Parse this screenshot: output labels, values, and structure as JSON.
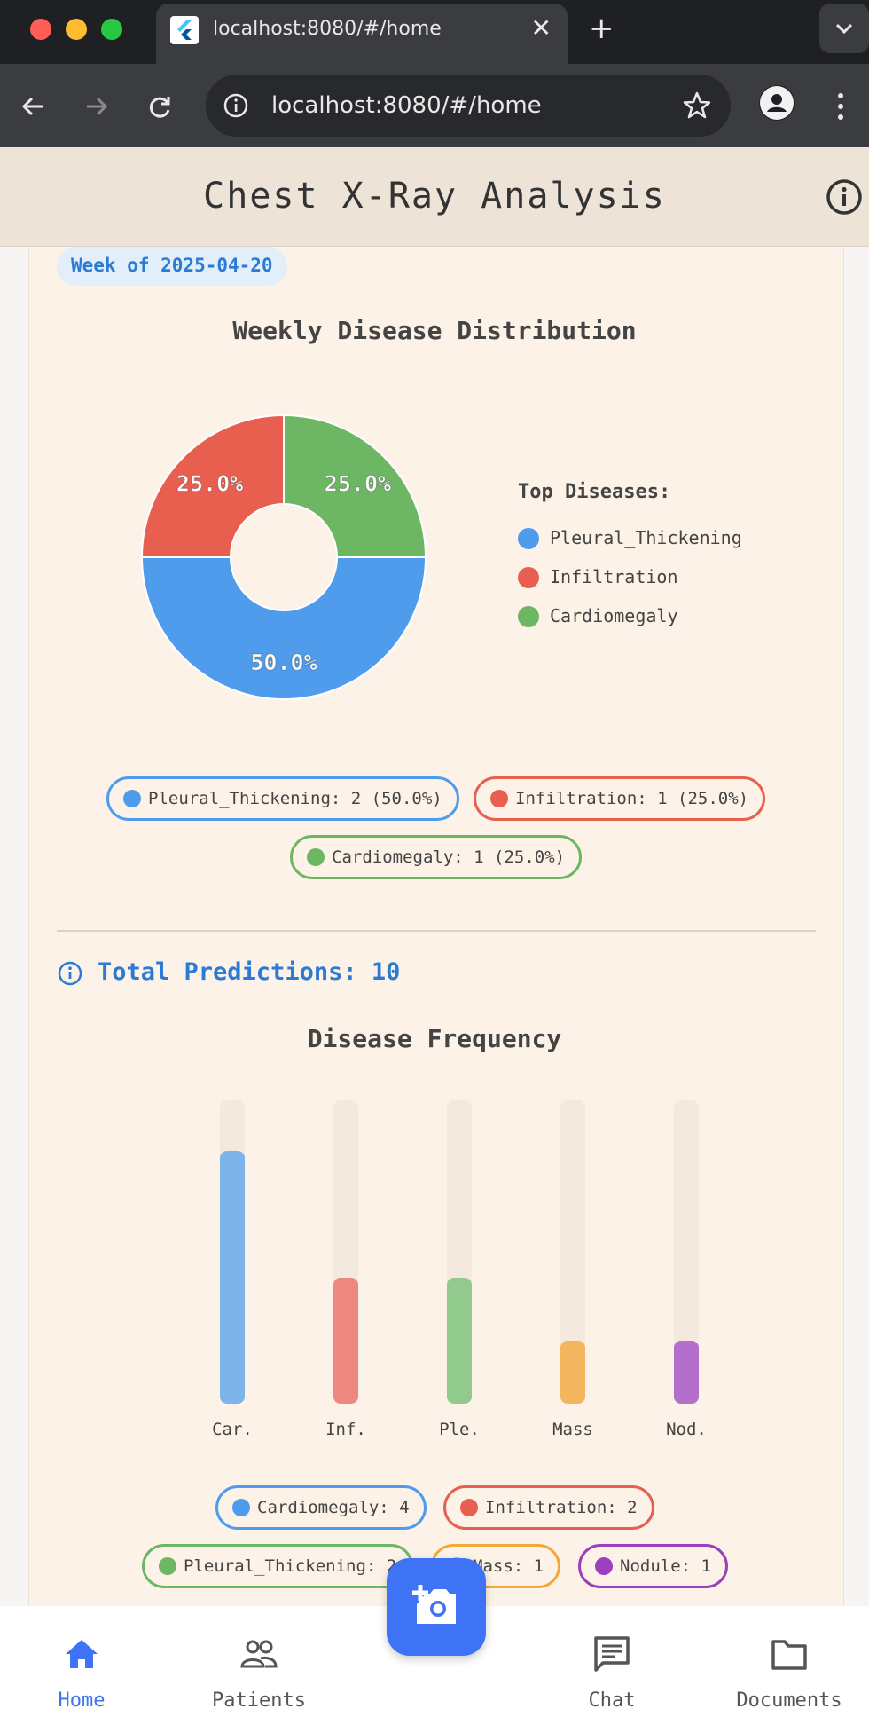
{
  "browser": {
    "tab_title": "localhost:8080/#/home",
    "url": "localhost:8080/#/home",
    "close_glyph": "✕",
    "new_tab_glyph": "+"
  },
  "app": {
    "title": "Chest X-Ray Analysis"
  },
  "weekly": {
    "week_label": "Week of 2025-04-20",
    "title": "Weekly Disease Distribution",
    "legend_title": "Top Diseases:",
    "legend": [
      {
        "label": "Pleural_Thickening",
        "color": "#4f9cec"
      },
      {
        "label": "Infiltration",
        "color": "#e85f50"
      },
      {
        "label": "Cardiomegaly",
        "color": "#6db664"
      }
    ],
    "slice_labels": [
      "50.0%",
      "25.0%",
      "25.0%"
    ],
    "chips": [
      {
        "label": "Pleural_Thickening: 2 (50.0%)",
        "color": "#4f9cec"
      },
      {
        "label": "Infiltration: 1 (25.0%)",
        "color": "#e85f50"
      },
      {
        "label": "Cardiomegaly: 1 (25.0%)",
        "color": "#6db664"
      }
    ]
  },
  "totals": {
    "label": "Total Predictions: 10"
  },
  "frequency": {
    "title": "Disease Frequency",
    "chips": [
      {
        "label": "Cardiomegaly: 4",
        "color": "#4f9cec"
      },
      {
        "label": "Infiltration: 2",
        "color": "#e85f50"
      },
      {
        "label": "Pleural_Thickening: 2",
        "color": "#6db664"
      },
      {
        "label": "Mass: 1",
        "color": "#f2a93b"
      },
      {
        "label": "Nodule: 1",
        "color": "#9c3fbd"
      }
    ]
  },
  "chart_data": [
    {
      "type": "pie",
      "title": "Weekly Disease Distribution",
      "categories": [
        "Pleural_Thickening",
        "Infiltration",
        "Cardiomegaly"
      ],
      "values": [
        2,
        1,
        1
      ],
      "percent_labels": [
        "50.0%",
        "25.0%",
        "25.0%"
      ],
      "colors": [
        "#4f9cec",
        "#e85f50",
        "#6db664"
      ],
      "donut": true,
      "legend_placement": "right"
    },
    {
      "type": "bar",
      "title": "Disease Frequency",
      "categories": [
        "Car.",
        "Inf.",
        "Ple.",
        "Mass",
        "Nod."
      ],
      "values": [
        4,
        2,
        2,
        1,
        1
      ],
      "ylim": [
        0,
        4.8
      ],
      "colors": [
        "#7db4ea",
        "#ec8880",
        "#92c98d",
        "#f3b65e",
        "#b36fcb"
      ],
      "grid": false
    }
  ],
  "bottom_nav": {
    "items": [
      {
        "label": "Home",
        "active": true
      },
      {
        "label": "Patients",
        "active": false
      },
      {
        "label": "Chat",
        "active": false
      },
      {
        "label": "Documents",
        "active": false
      }
    ],
    "active_color": "#3d73f4",
    "inactive_color": "#555555"
  }
}
